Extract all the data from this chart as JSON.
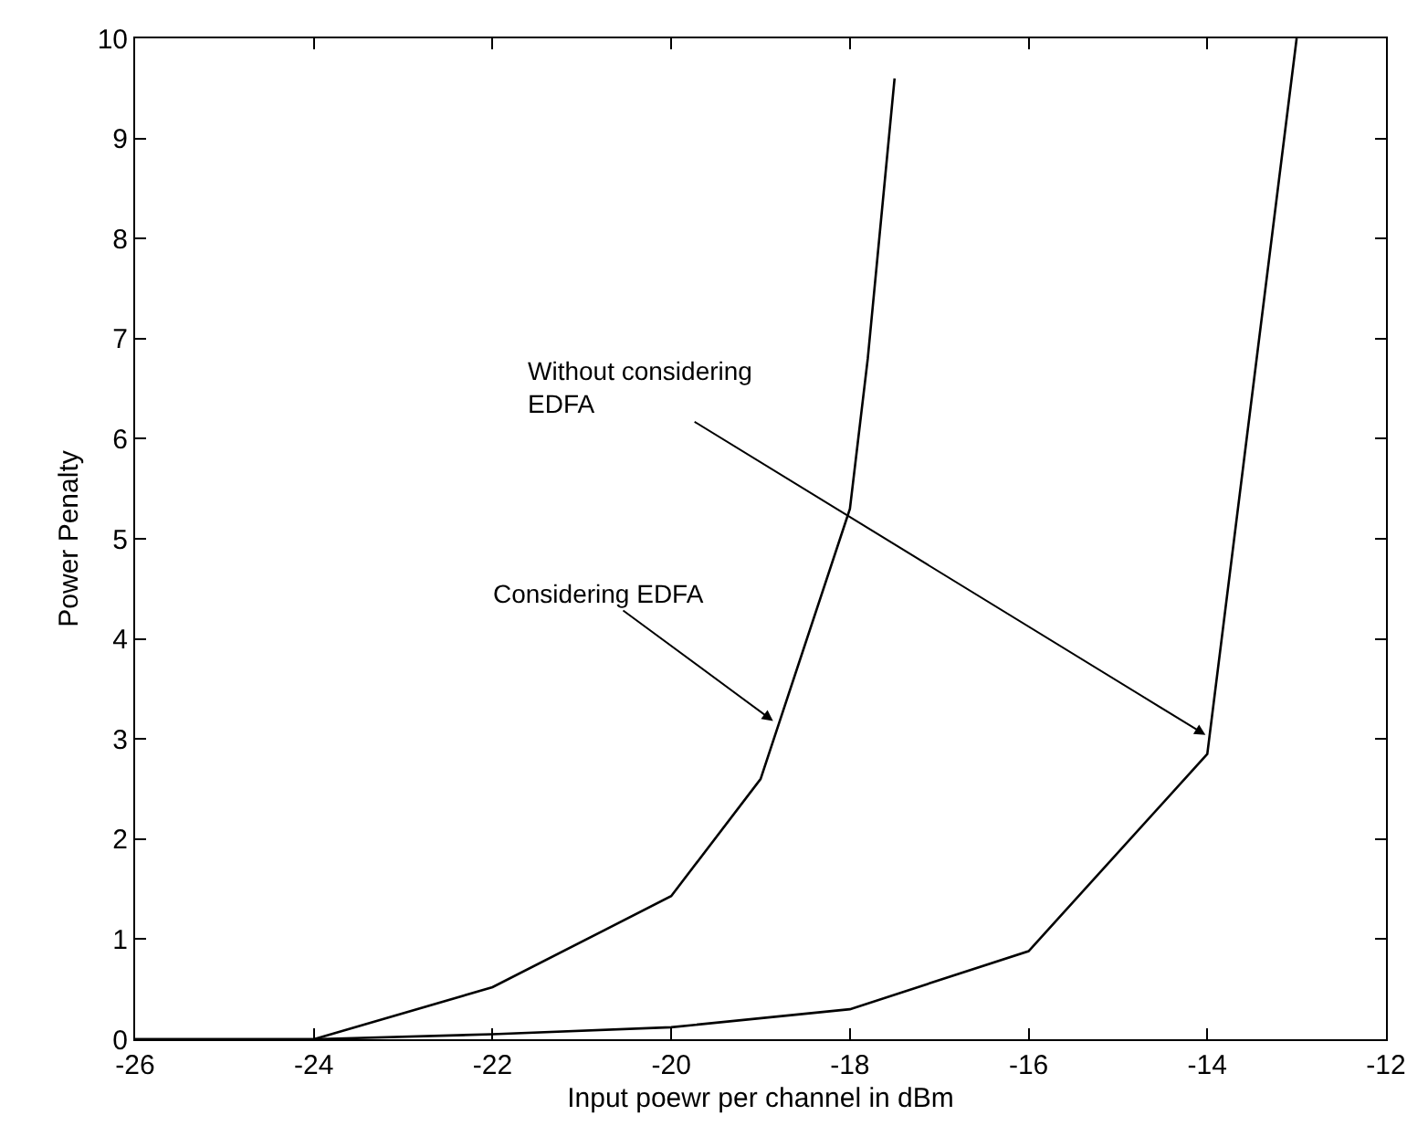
{
  "chart_data": {
    "type": "line",
    "xlabel": "Input poewr per channel in dBm",
    "ylabel": "Power Penalty",
    "xlim": [
      -26,
      -12
    ],
    "xticks": [
      -26,
      -24,
      -22,
      -20,
      -18,
      -16,
      -14,
      -12
    ],
    "ylim": [
      0,
      10
    ],
    "yticks": [
      0,
      1,
      2,
      3,
      4,
      5,
      6,
      7,
      8,
      9,
      10
    ],
    "marker": "none",
    "line_style": "solid",
    "series": [
      {
        "color": "#000000",
        "x": [
          -26,
          -24,
          -22,
          -20,
          -19,
          -18,
          -17.8,
          -17.5
        ],
        "values": [
          0,
          0,
          0.52,
          1.43,
          2.6,
          5.3,
          6.8,
          9.6
        ]
      },
      {
        "color": "#000000",
        "x": [
          -26,
          -24,
          -22,
          -20,
          -18,
          -16,
          -14,
          -13
        ],
        "values": [
          0,
          0,
          0.05,
          0.12,
          0.3,
          0.88,
          2.85,
          10
        ]
      }
    ],
    "annotations": [
      {
        "text": "Considering EDFA",
        "x": -18.86,
        "y": 3.18
      },
      {
        "text": "Without considering\nEDFA",
        "x": -14.02,
        "y": 3.04
      }
    ]
  }
}
